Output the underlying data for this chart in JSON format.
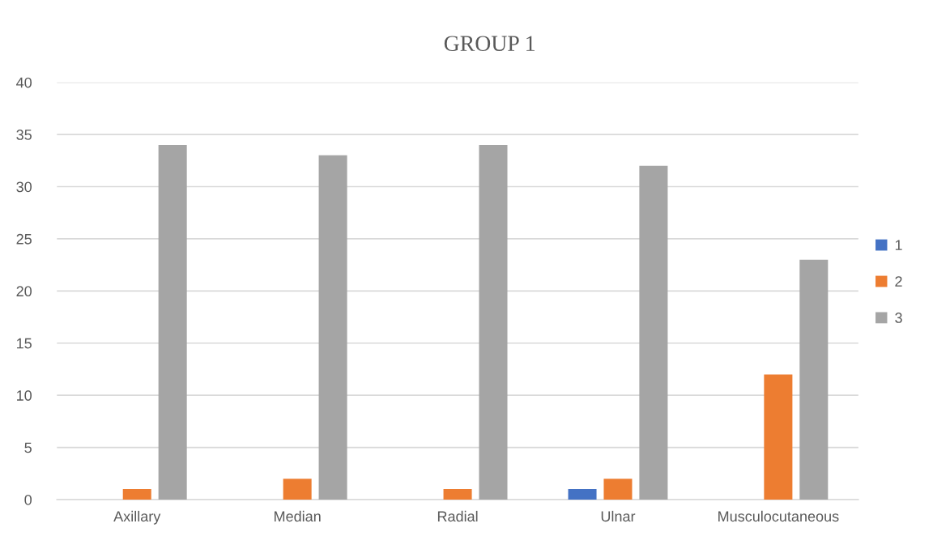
{
  "chart_data": {
    "type": "bar",
    "title": "GROUP 1",
    "categories": [
      "Axillary",
      "Median",
      "Radial",
      "Ulnar",
      "Musculocutaneous"
    ],
    "series": [
      {
        "name": "1",
        "color": "#4472c4",
        "values": [
          0,
          0,
          0,
          1,
          0
        ]
      },
      {
        "name": "2",
        "color": "#ed7d31",
        "values": [
          1,
          2,
          1,
          2,
          12
        ]
      },
      {
        "name": "3",
        "color": "#a5a5a5",
        "values": [
          34,
          33,
          34,
          32,
          23
        ]
      }
    ],
    "ylim": [
      0,
      40
    ],
    "yticks": [
      0,
      5,
      10,
      15,
      20,
      25,
      30,
      35,
      40
    ],
    "grid": "y",
    "legend": "right"
  }
}
